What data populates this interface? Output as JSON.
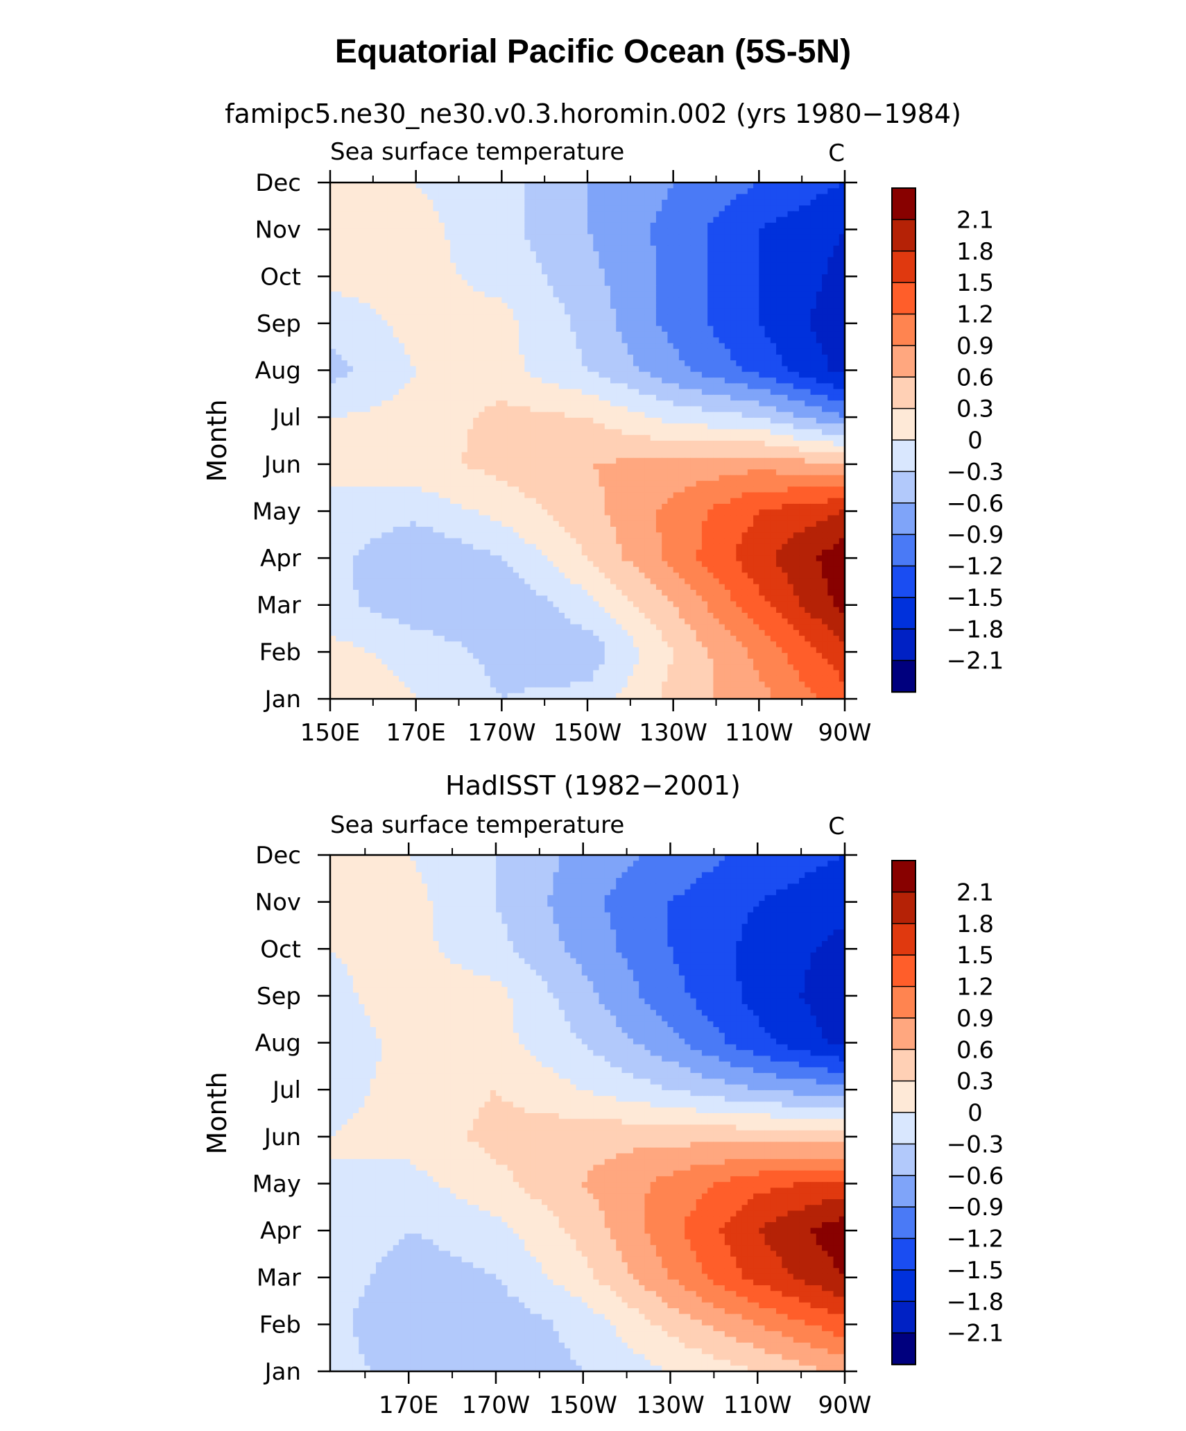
{
  "main_title": "Equatorial Pacific Ocean (5S-5N)",
  "colors": [
    "#00007e",
    "#0021c4",
    "#0031dc",
    "#1a4df2",
    "#4a7af6",
    "#7fa4f9",
    "#b2c9fb",
    "#d9e7fe",
    "#fee9d7",
    "#ffd0b5",
    "#ffa77f",
    "#ff8450",
    "#ff5e2a",
    "#e0390f",
    "#b52206",
    "#880100"
  ],
  "chart_data": [
    {
      "type": "heatmap",
      "title": "famipc5.ne30_ne30.v0.3.horomin.002 (yrs 1980−1984)",
      "left_label": "Sea surface temperature",
      "right_label": "C",
      "ylabel": "Month",
      "y_ticks": [
        "Jan",
        "Feb",
        "Mar",
        "Apr",
        "May",
        "Jun",
        "Jul",
        "Aug",
        "Sep",
        "Oct",
        "Nov",
        "Dec"
      ],
      "x_ticks": [
        "150E",
        "170E",
        "170W",
        "150W",
        "130W",
        "110W",
        "90W"
      ],
      "x_tick_lon": [
        150,
        170,
        190,
        210,
        230,
        250,
        270
      ],
      "xlim": [
        150,
        270
      ],
      "colorbar_labels": [
        "2.1",
        "1.8",
        "1.5",
        "1.2",
        "0.9",
        "0.6",
        "0.3",
        "0",
        "−0.3",
        "−0.6",
        "−0.9",
        "−1.2",
        "−1.5",
        "−1.8",
        "−2.1"
      ],
      "levels": [
        -2.1,
        -1.8,
        -1.5,
        -1.2,
        -0.9,
        -0.6,
        -0.3,
        0,
        0.3,
        0.6,
        0.9,
        1.2,
        1.5,
        1.8,
        2.1
      ],
      "lon": [
        150,
        170,
        190,
        210,
        230,
        250,
        270
      ],
      "values": [
        [
          0.2,
          0.0,
          -0.3,
          -0.2,
          0.4,
          0.8,
          1.4
        ],
        [
          0.1,
          -0.1,
          -0.4,
          -0.5,
          0.3,
          1.0,
          1.7
        ],
        [
          -0.2,
          -0.5,
          -0.6,
          -0.1,
          0.6,
          1.4,
          2.2
        ],
        [
          -0.2,
          -0.6,
          -0.3,
          0.3,
          1.0,
          1.7,
          2.3
        ],
        [
          -0.1,
          -0.2,
          0.1,
          0.5,
          1.0,
          1.5,
          1.8
        ],
        [
          0.1,
          0.2,
          0.4,
          0.6,
          0.7,
          0.8,
          0.6
        ],
        [
          0.0,
          0.1,
          0.4,
          0.3,
          -0.1,
          -0.3,
          -0.9
        ],
        [
          -0.4,
          0.0,
          0.1,
          -0.3,
          -0.8,
          -1.3,
          -1.9
        ],
        [
          -0.2,
          0.1,
          0.1,
          -0.4,
          -1.0,
          -1.5,
          -2.0
        ],
        [
          0.1,
          0.1,
          -0.1,
          -0.5,
          -1.0,
          -1.5,
          -1.9
        ],
        [
          0.1,
          0.1,
          -0.2,
          -0.6,
          -1.0,
          -1.5,
          -1.8
        ],
        [
          0.1,
          0.0,
          -0.2,
          -0.6,
          -0.9,
          -1.2,
          -1.5
        ]
      ]
    },
    {
      "type": "heatmap",
      "title": "HadISST (1982−2001)",
      "left_label": "Sea surface temperature",
      "right_label": "C",
      "ylabel": "Month",
      "y_ticks": [
        "Jan",
        "Feb",
        "Mar",
        "Apr",
        "May",
        "Jun",
        "Jul",
        "Aug",
        "Sep",
        "Oct",
        "Nov",
        "Dec"
      ],
      "x_ticks": [
        "170E",
        "170W",
        "150W",
        "130W",
        "110W",
        "90W"
      ],
      "x_tick_lon": [
        170,
        190,
        210,
        230,
        250,
        270
      ],
      "xlim": [
        152,
        270
      ],
      "colorbar_labels": [
        "2.1",
        "1.8",
        "1.5",
        "1.2",
        "0.9",
        "0.6",
        "0.3",
        "0",
        "−0.3",
        "−0.6",
        "−0.9",
        "−1.2",
        "−1.5",
        "−1.8",
        "−2.1"
      ],
      "levels": [
        -2.1,
        -1.8,
        -1.5,
        -1.2,
        -0.9,
        -0.6,
        -0.3,
        0,
        0.3,
        0.6,
        0.9,
        1.2,
        1.5,
        1.8,
        2.1
      ],
      "lon": [
        152,
        170,
        190,
        210,
        230,
        250,
        270
      ],
      "values": [
        [
          -0.1,
          -0.5,
          -0.5,
          -0.3,
          0.0,
          0.3,
          0.7
        ],
        [
          -0.2,
          -0.6,
          -0.5,
          -0.2,
          0.4,
          0.9,
          1.4
        ],
        [
          -0.1,
          -0.5,
          -0.3,
          0.2,
          0.9,
          1.6,
          2.1
        ],
        [
          0.0,
          -0.3,
          -0.1,
          0.4,
          1.1,
          1.8,
          2.3
        ],
        [
          0.0,
          -0.1,
          0.2,
          0.6,
          1.0,
          1.4,
          1.6
        ],
        [
          0.0,
          0.1,
          0.4,
          0.5,
          0.5,
          0.5,
          0.4
        ],
        [
          -0.1,
          0.1,
          0.3,
          0.0,
          -0.3,
          -0.6,
          -0.8
        ],
        [
          -0.2,
          0.1,
          0.1,
          -0.3,
          -0.8,
          -1.4,
          -1.9
        ],
        [
          -0.1,
          0.2,
          0.1,
          -0.5,
          -1.1,
          -1.6,
          -2.0
        ],
        [
          0.0,
          0.1,
          -0.2,
          -0.7,
          -1.2,
          -1.6,
          -1.9
        ],
        [
          0.1,
          0.1,
          -0.3,
          -0.8,
          -1.2,
          -1.5,
          -1.7
        ],
        [
          0.1,
          0.0,
          -0.3,
          -0.7,
          -1.0,
          -1.3,
          -1.5
        ]
      ]
    }
  ]
}
